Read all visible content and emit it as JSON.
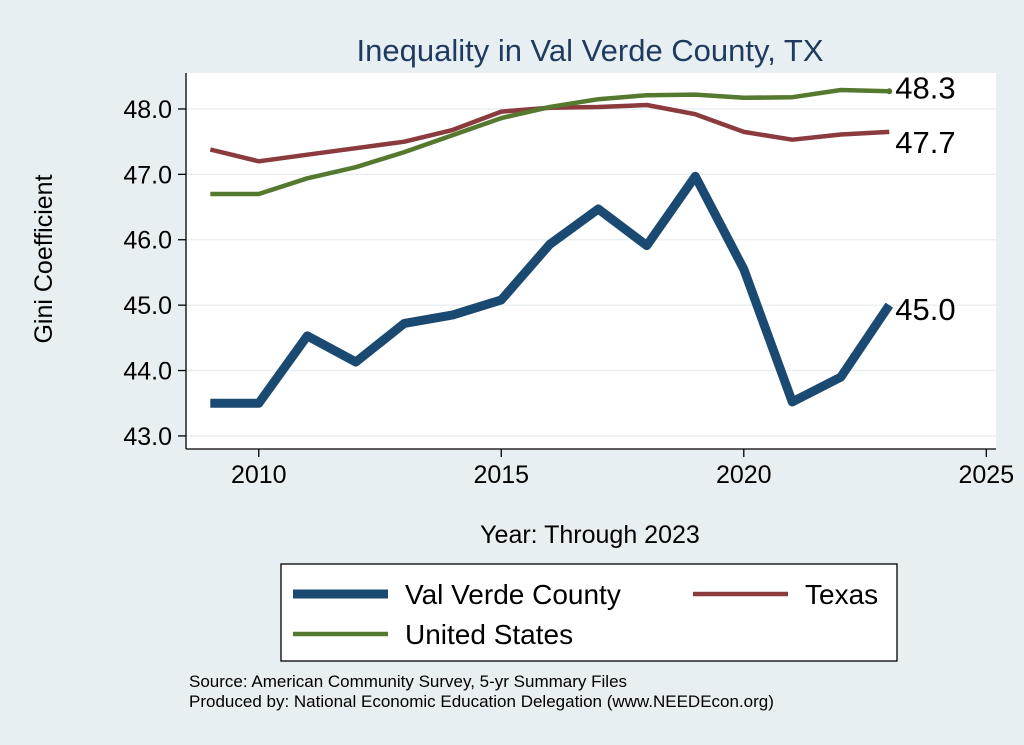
{
  "chart_data": {
    "type": "line",
    "title": "Inequality in Val Verde County, TX",
    "xlabel": "Year: Through 2023",
    "ylabel": "Gini Coefficient",
    "xlim": [
      2008.5,
      2025.2
    ],
    "ylim": [
      42.8,
      48.55
    ],
    "xticks": [
      2010,
      2015,
      2020,
      2025
    ],
    "yticks": [
      43.0,
      44.0,
      45.0,
      46.0,
      47.0,
      48.0
    ],
    "ytick_labels": [
      "43.0",
      "44.0",
      "45.0",
      "46.0",
      "47.0",
      "48.0"
    ],
    "x": [
      2009,
      2010,
      2011,
      2012,
      2013,
      2014,
      2015,
      2016,
      2017,
      2018,
      2019,
      2020,
      2021,
      2022,
      2023
    ],
    "series": [
      {
        "name": "Val Verde County",
        "color": "#1a4a72",
        "values": [
          43.5,
          43.5,
          44.53,
          44.13,
          44.72,
          44.85,
          45.08,
          45.93,
          46.47,
          45.91,
          46.97,
          45.55,
          43.52,
          43.9,
          45.0
        ],
        "end_label": "45.0"
      },
      {
        "name": "Texas",
        "color": "#8b3a3e",
        "values": [
          47.38,
          47.2,
          47.3,
          47.4,
          47.5,
          47.68,
          47.96,
          48.02,
          48.03,
          48.06,
          47.92,
          47.65,
          47.53,
          47.61,
          47.65
        ],
        "end_label": "47.7"
      },
      {
        "name": "United States",
        "color": "#55792f",
        "values": [
          46.7,
          46.7,
          46.94,
          47.11,
          47.34,
          47.6,
          47.86,
          48.03,
          48.15,
          48.21,
          48.22,
          48.17,
          48.18,
          48.29,
          48.27
        ],
        "end_label": "48.3"
      }
    ],
    "legend_position": "bottom",
    "grid": true
  },
  "source": {
    "line1": "Source: American Community Survey, 5-yr Summary Files",
    "line2": "Produced by: National Economic Education Delegation (www.NEEDEcon.org)"
  }
}
